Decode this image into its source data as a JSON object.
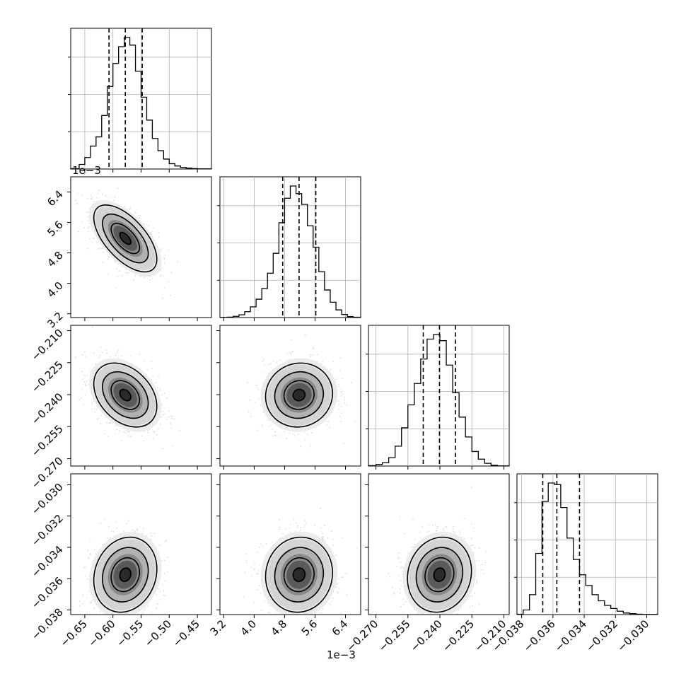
{
  "chart_data": {
    "type": "corner",
    "parameters": [
      {
        "ticks": [
          "−0.65",
          "−0.60",
          "−0.55",
          "−0.50",
          "−0.45"
        ],
        "tick_values": [
          -0.65,
          -0.6,
          -0.55,
          -0.5,
          -0.45
        ],
        "range": [
          -0.675,
          -0.425
        ],
        "quantiles": [
          -0.607,
          -0.578,
          -0.548
        ],
        "offset_label": "",
        "hist_bins": [
          -0.675,
          -0.66,
          -0.65,
          -0.64,
          -0.63,
          -0.62,
          -0.61,
          -0.6,
          -0.59,
          -0.58,
          -0.57,
          -0.56,
          -0.55,
          -0.54,
          -0.53,
          -0.52,
          -0.51,
          -0.5,
          -0.49,
          -0.48,
          -0.47,
          -0.46,
          -0.45,
          -0.425
        ],
        "hist_counts": [
          2,
          30,
          75,
          150,
          210,
          350,
          540,
          690,
          800,
          860,
          810,
          640,
          470,
          320,
          200,
          120,
          65,
          35,
          20,
          10,
          6,
          3,
          1
        ]
      },
      {
        "ticks": [
          "3.2",
          "4.0",
          "4.8",
          "5.6",
          "6.4"
        ],
        "tick_values": [
          3.2,
          4.0,
          4.8,
          5.6,
          6.4
        ],
        "range": [
          3.1,
          6.8
        ],
        "quantiles": [
          4.75,
          5.18,
          5.62
        ],
        "offset_label": "1e−3",
        "hist_bins": [
          3.1,
          3.3,
          3.45,
          3.6,
          3.75,
          3.9,
          4.05,
          4.2,
          4.35,
          4.5,
          4.65,
          4.8,
          4.95,
          5.1,
          5.25,
          5.4,
          5.55,
          5.7,
          5.85,
          6.0,
          6.15,
          6.3,
          6.45,
          6.6,
          6.8
        ],
        "hist_counts": [
          1,
          3,
          8,
          18,
          38,
          70,
          120,
          190,
          290,
          420,
          620,
          780,
          860,
          810,
          740,
          600,
          460,
          300,
          180,
          100,
          50,
          20,
          6,
          2
        ]
      },
      {
        "ticks": [
          "−0.270",
          "−0.255",
          "−0.240",
          "−0.225",
          "−0.210"
        ],
        "tick_values": [
          -0.27,
          -0.255,
          -0.24,
          -0.225,
          -0.21
        ],
        "range": [
          -0.2735,
          -0.2075
        ],
        "quantiles": [
          -0.2478,
          -0.2402,
          -0.2327
        ],
        "offset_label": "",
        "hist_bins": [
          -0.2735,
          -0.27,
          -0.267,
          -0.264,
          -0.261,
          -0.258,
          -0.255,
          -0.252,
          -0.249,
          -0.246,
          -0.243,
          -0.24,
          -0.237,
          -0.234,
          -0.231,
          -0.228,
          -0.225,
          -0.222,
          -0.219,
          -0.216,
          -0.213,
          -0.2075
        ],
        "hist_counts": [
          3,
          10,
          22,
          55,
          130,
          250,
          400,
          540,
          700,
          830,
          860,
          820,
          660,
          480,
          320,
          190,
          95,
          45,
          18,
          5,
          1
        ]
      },
      {
        "ticks": [
          "−0.038",
          "−0.036",
          "−0.034",
          "−0.032",
          "−0.030"
        ],
        "tick_values": [
          -0.038,
          -0.036,
          -0.034,
          -0.032,
          -0.03
        ],
        "range": [
          -0.0383,
          -0.0293
        ],
        "quantiles": [
          -0.03665,
          -0.03575,
          -0.0343
        ],
        "offset_label": "",
        "hist_bins": [
          -0.0383,
          -0.0379,
          -0.0375,
          -0.0371,
          -0.0367,
          -0.0363,
          -0.0359,
          -0.0355,
          -0.0351,
          -0.0347,
          -0.0343,
          -0.0339,
          -0.0335,
          -0.0331,
          -0.0327,
          -0.0323,
          -0.0319,
          -0.0315,
          -0.0311,
          -0.0307,
          -0.0303,
          -0.0293
        ],
        "hist_counts": [
          2,
          30,
          130,
          400,
          740,
          860,
          850,
          700,
          500,
          360,
          260,
          190,
          130,
          90,
          60,
          40,
          22,
          10,
          6,
          3,
          1
        ]
      }
    ],
    "pairs": [
      {
        "row": 1,
        "col": 0,
        "center": [
          -0.578,
          5.18
        ],
        "sigma": [
          0.028,
          0.44
        ],
        "rho": -0.62
      },
      {
        "row": 2,
        "col": 0,
        "center": [
          -0.578,
          -0.2402
        ],
        "sigma": [
          0.028,
          0.0075
        ],
        "rho": -0.35
      },
      {
        "row": 2,
        "col": 1,
        "center": [
          5.18,
          -0.2402
        ],
        "sigma": [
          0.44,
          0.0075
        ],
        "rho": 0.05
      },
      {
        "row": 3,
        "col": 0,
        "center": [
          -0.578,
          -0.03575
        ],
        "sigma": [
          0.028,
          0.0012
        ],
        "rho": 0.15
      },
      {
        "row": 3,
        "col": 1,
        "center": [
          5.18,
          -0.03575
        ],
        "sigma": [
          0.44,
          0.0012
        ],
        "rho": 0.05
      },
      {
        "row": 3,
        "col": 2,
        "center": [
          -0.2402,
          -0.03575
        ],
        "sigma": [
          0.0075,
          0.0012
        ],
        "rho": 0.1
      }
    ],
    "contour_levels": [
      0.5,
      1.0,
      1.5,
      2.0
    ],
    "grid": true,
    "colors": {
      "line": "#000000",
      "grid": "#b0b0b0",
      "points": "#9a9a9a"
    }
  }
}
